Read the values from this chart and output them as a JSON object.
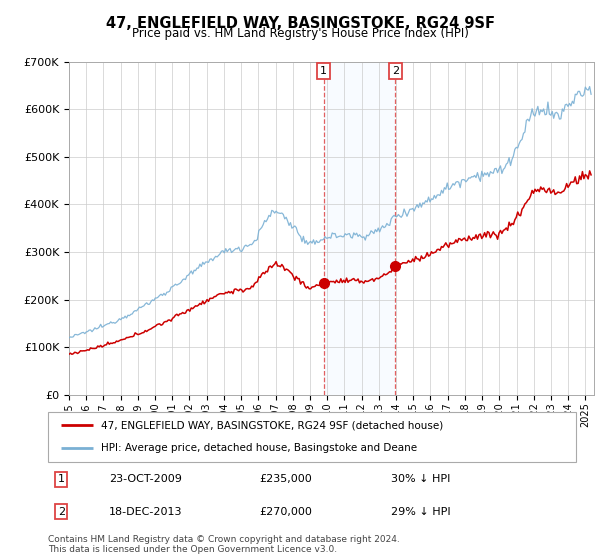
{
  "title": "47, ENGLEFIELD WAY, BASINGSTOKE, RG24 9SF",
  "subtitle": "Price paid vs. HM Land Registry's House Price Index (HPI)",
  "legend_label_red": "47, ENGLEFIELD WAY, BASINGSTOKE, RG24 9SF (detached house)",
  "legend_label_blue": "HPI: Average price, detached house, Basingstoke and Deane",
  "transaction1_date": "23-OCT-2009",
  "transaction1_price": "£235,000",
  "transaction1_hpi": "30% ↓ HPI",
  "transaction2_date": "18-DEC-2013",
  "transaction2_price": "£270,000",
  "transaction2_hpi": "29% ↓ HPI",
  "footnote": "Contains HM Land Registry data © Crown copyright and database right 2024.\nThis data is licensed under the Open Government Licence v3.0.",
  "ylim": [
    0,
    700000
  ],
  "red_color": "#cc0000",
  "blue_color": "#7ab0d4",
  "highlight_color": "#ddeeff",
  "grid_color": "#cccccc",
  "vline_color": "#dd4444",
  "t1_year": 2009.79,
  "t2_year": 2013.96,
  "p1": 235000,
  "p2": 270000
}
